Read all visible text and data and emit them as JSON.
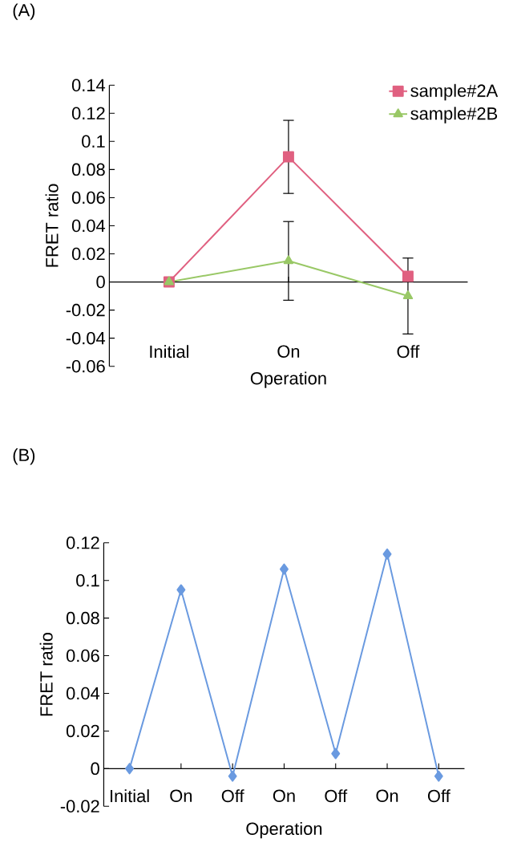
{
  "chart_data": [
    {
      "type": "line",
      "title": "(A)",
      "xlabel": "Operation",
      "ylabel": "FRET ratio",
      "categories": [
        "Initial",
        "On",
        "Off"
      ],
      "series": [
        {
          "name": "sample#2A",
          "color": "#e06080",
          "marker": "square",
          "values": [
            0,
            0.089,
            0.004
          ],
          "errors": [
            null,
            0.026,
            null
          ]
        },
        {
          "name": "sample#2B",
          "color": "#99c866",
          "marker": "triangle",
          "values": [
            0,
            0.015,
            -0.01
          ],
          "errors": [
            null,
            0.028,
            0.027
          ]
        }
      ],
      "ylim": [
        -0.06,
        0.14
      ],
      "yticks": [
        -0.06,
        -0.04,
        -0.02,
        0,
        0.02,
        0.04,
        0.06,
        0.08,
        0.1,
        0.12,
        0.14
      ],
      "legend": "top right",
      "line_style": "solid"
    },
    {
      "type": "line",
      "title": "(B)",
      "xlabel": "Operation",
      "ylabel": "FRET ratio",
      "categories": [
        "Initial",
        "On",
        "Off",
        "On",
        "Off",
        "On",
        "Off"
      ],
      "series": [
        {
          "color": "#6a9ae0",
          "marker": "diamond",
          "values": [
            0,
            0.095,
            -0.004,
            0.106,
            0.008,
            0.114,
            -0.004
          ]
        }
      ],
      "ylim": [
        -0.02,
        0.12
      ],
      "yticks": [
        -0.02,
        0,
        0.02,
        0.04,
        0.06,
        0.08,
        0.1,
        0.12
      ],
      "line_style": "solid"
    }
  ]
}
